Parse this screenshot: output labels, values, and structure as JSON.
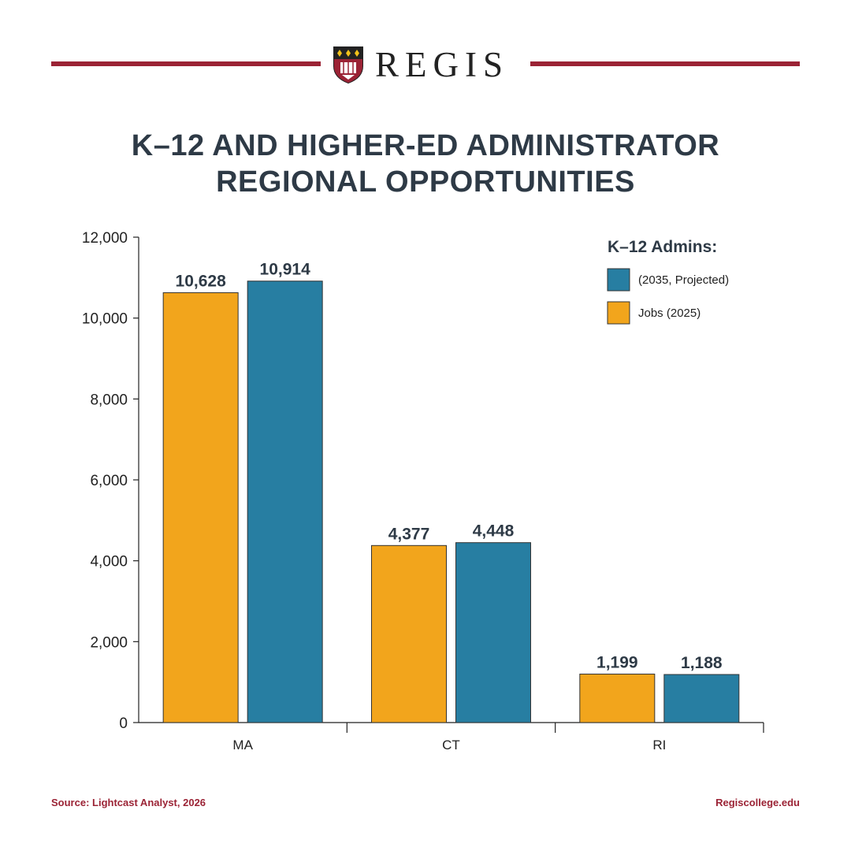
{
  "brand": {
    "name": "REGIS",
    "crest_icon": "shield-crest-icon"
  },
  "header": {
    "title_line1": "K–12 AND HIGHER-ED ADMINISTRATOR",
    "title_line2": "REGIONAL OPPORTUNITIES"
  },
  "footer": {
    "source": "Source: Lightcast Analyst, 2026",
    "url": "Regiscollege.edu"
  },
  "colors": {
    "brand_red": "#9b2335",
    "title_text": "#2e3a46",
    "series_jobs": "#f2a51c",
    "series_projected": "#277ea2"
  },
  "chart_data": {
    "type": "bar",
    "categories": [
      "MA",
      "CT",
      "RI"
    ],
    "series": [
      {
        "name": "Jobs (2025)",
        "values": [
          10628,
          4377,
          1199
        ],
        "color": "#f2a51c"
      },
      {
        "name": "(2035, Projected)",
        "values": [
          10914,
          4448,
          1188
        ],
        "color": "#277ea2"
      }
    ],
    "data_labels": [
      [
        "10,628",
        "4,377",
        "1,199"
      ],
      [
        "10,914",
        "4,448",
        "1,188"
      ]
    ],
    "yticks": [
      "0",
      "2,000",
      "4,000",
      "6,000",
      "8,000",
      "10,000",
      "12,000"
    ],
    "ylim": [
      0,
      12000
    ],
    "legend": {
      "title": "K–12 Admins:",
      "placement": "top-right",
      "entries": [
        {
          "label": "(2035, Projected)",
          "color": "#277ea2"
        },
        {
          "label": "Jobs (2025)",
          "color": "#f2a51c"
        }
      ]
    },
    "xlabel": "",
    "ylabel": "",
    "grid": false
  }
}
